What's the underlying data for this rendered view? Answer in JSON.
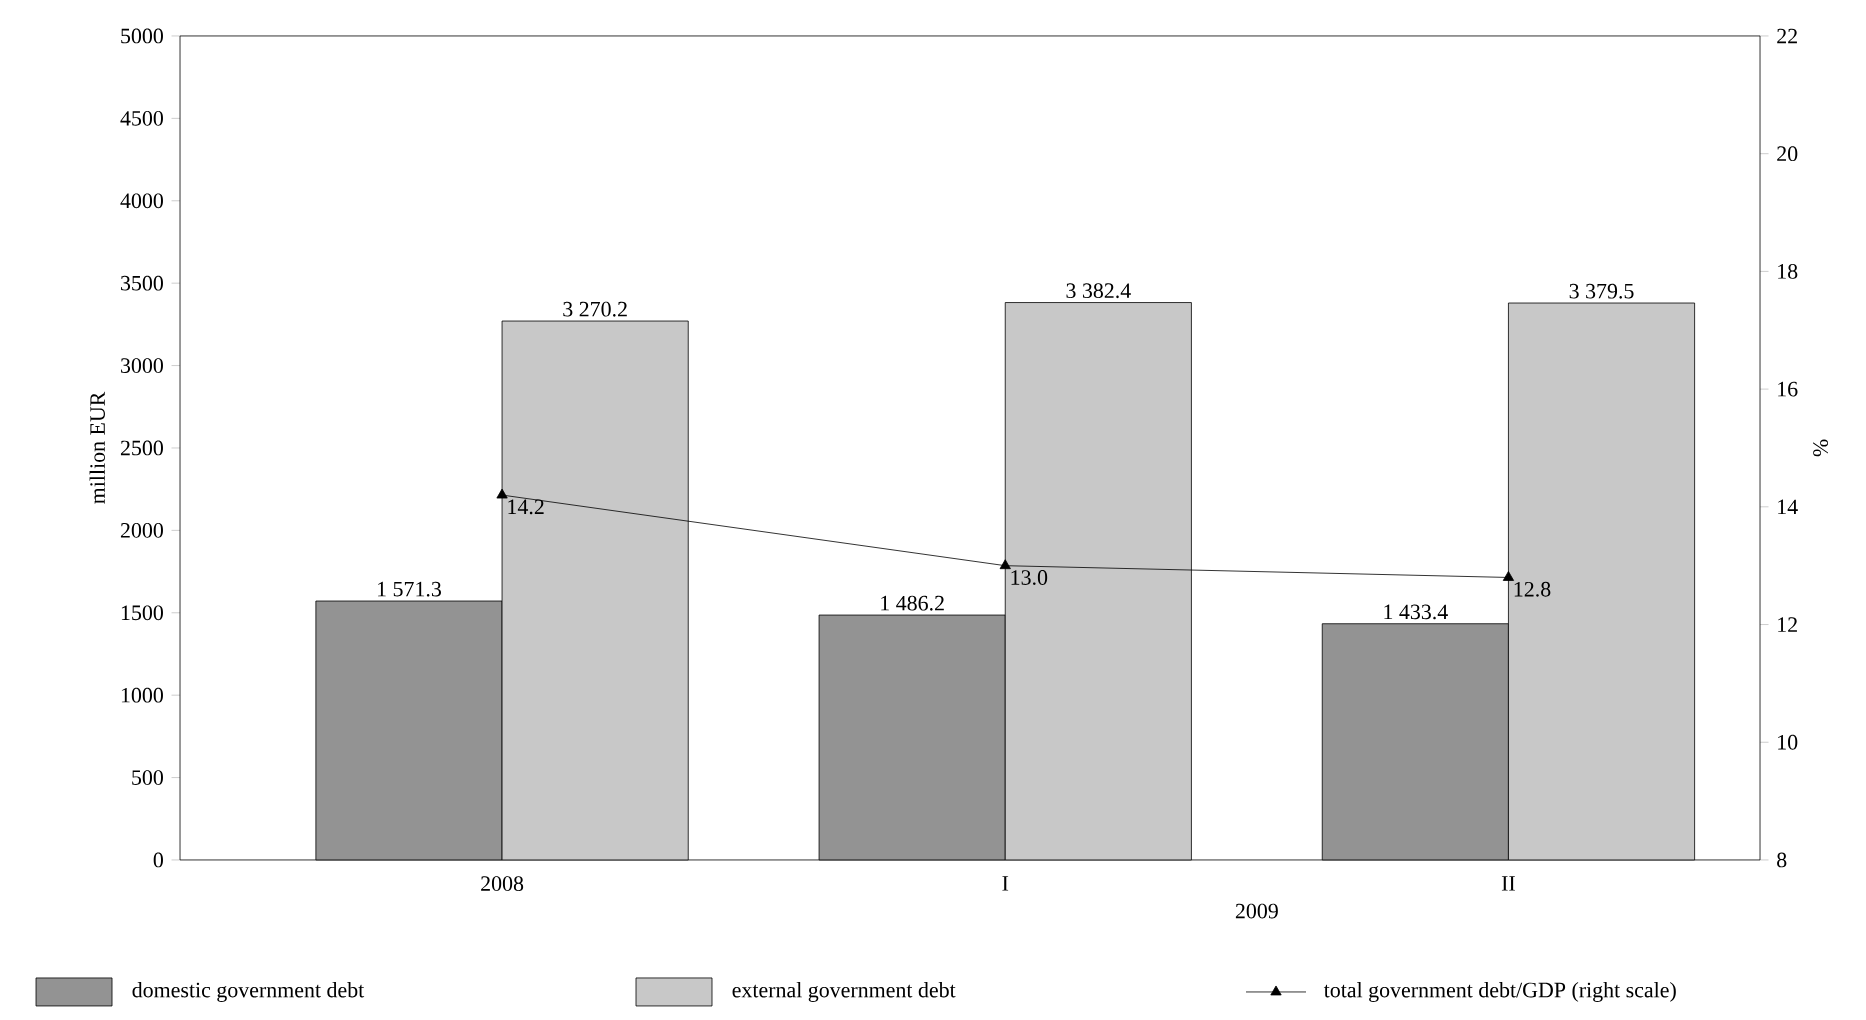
{
  "chart_data": {
    "type": "bar",
    "categories": [
      "2008",
      "I",
      "II"
    ],
    "xlabel": "2009",
    "ylabel": "million EUR",
    "y2label": "%",
    "ylim": [
      0,
      5000
    ],
    "yticks": [
      0,
      500,
      1000,
      1500,
      2000,
      2500,
      3000,
      3500,
      4000,
      4500,
      5000
    ],
    "y2lim": [
      8,
      22
    ],
    "y2ticks": [
      8,
      10,
      12,
      14,
      16,
      18,
      20,
      22
    ],
    "series": [
      {
        "name": "domestic government debt",
        "color": "#939393",
        "values": [
          1571.3,
          1486.2,
          1433.4
        ],
        "value_labels": [
          "1 571.3",
          "1 486.2",
          "1 433.4"
        ]
      },
      {
        "name": "external government debt",
        "color": "#c8c8c8",
        "values": [
          3270.2,
          3382.4,
          3379.5
        ],
        "value_labels": [
          "3 270.2",
          "3 382.4",
          "3 379.5"
        ]
      },
      {
        "name": "total government debt/GDP (right scale)",
        "type": "line",
        "axis": "y2",
        "color": "#000000",
        "marker": "triangle",
        "values": [
          14.2,
          13.0,
          12.8
        ],
        "value_labels": [
          "14.2",
          "13.0",
          "12.8"
        ]
      }
    ],
    "legend": "bottom",
    "grid": false
  }
}
